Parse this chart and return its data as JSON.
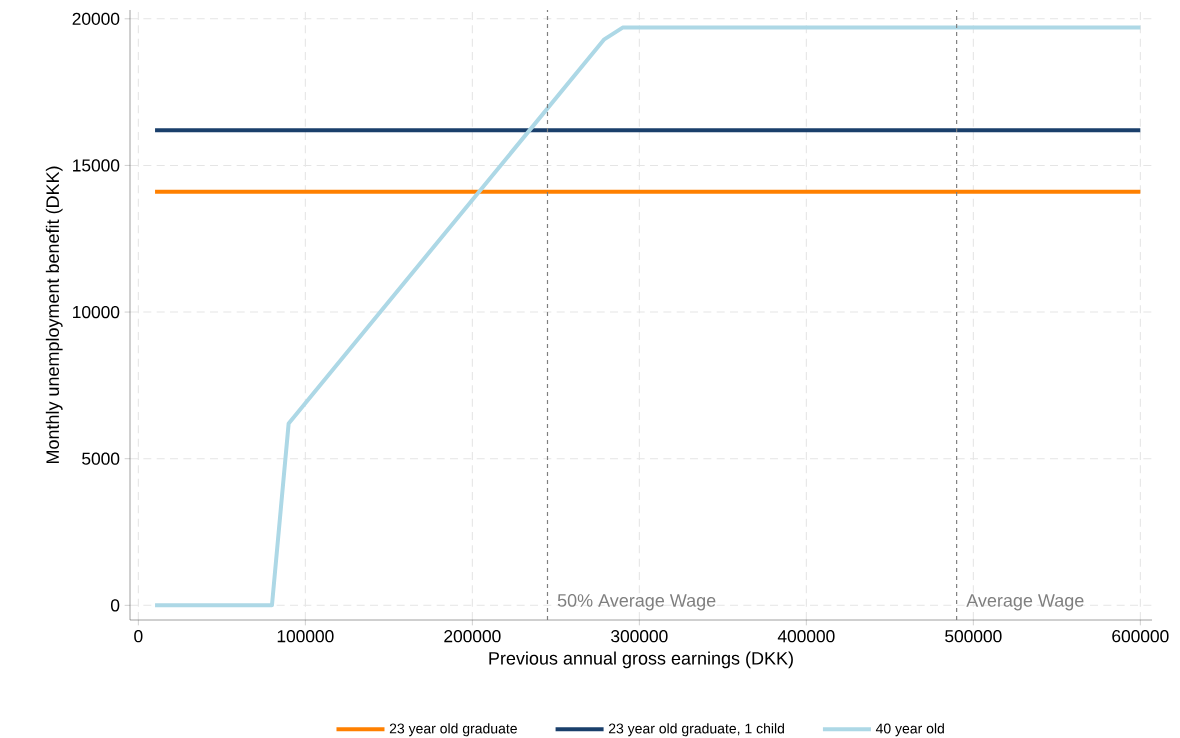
{
  "chart_data": {
    "type": "line",
    "xlabel": "Previous annual gross earnings (DKK)",
    "ylabel": "Monthly unemployment benefit (DKK)",
    "series": [
      {
        "name": "23 year old graduate",
        "color": "#ff8000",
        "x": [
          10000,
          600000
        ],
        "values": [
          14100,
          14100
        ]
      },
      {
        "name": "23 year old graduate, 1 child",
        "color": "#1a3f6b",
        "x": [
          10000,
          600000
        ],
        "values": [
          16200,
          16200
        ]
      },
      {
        "name": "40 year old",
        "color": "#add8e6",
        "x": [
          10000,
          80000,
          90000,
          279000,
          290000,
          600000
        ],
        "values": [
          0,
          0,
          6200,
          19300,
          19700,
          19700
        ]
      }
    ],
    "xlim": [
      -5000,
      607000
    ],
    "ylim": [
      -500,
      20300
    ],
    "xticks": [
      0,
      100000,
      200000,
      300000,
      400000,
      500000,
      600000
    ],
    "yticks": [
      0,
      5000,
      10000,
      15000,
      20000
    ],
    "ref_lines": [
      {
        "axis": "x",
        "value": 245000,
        "label": "50% Average Wage",
        "color": "#7f7f7f",
        "line_style": "dashed"
      },
      {
        "axis": "x",
        "value": 490000,
        "label": "Average Wage",
        "color": "#7f7f7f",
        "line_style": "dashed"
      }
    ],
    "grid": true,
    "legend": "bottom",
    "marker": "none",
    "line_style": "solid"
  }
}
